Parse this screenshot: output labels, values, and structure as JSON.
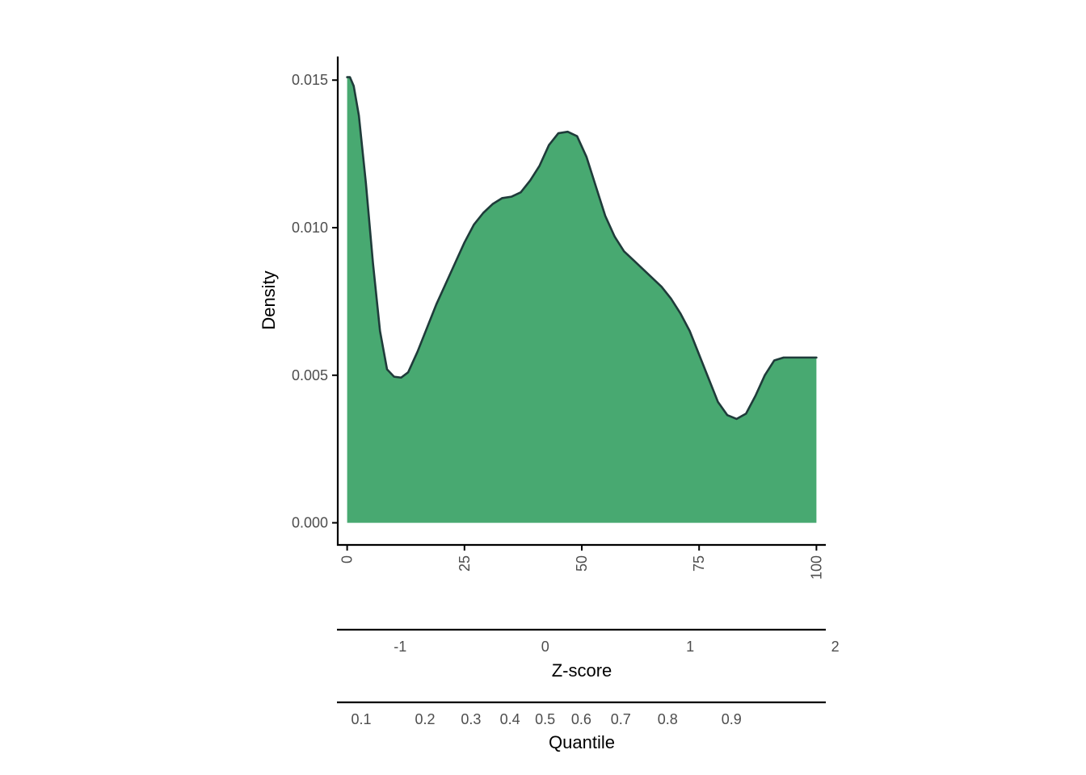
{
  "chart_data": {
    "type": "area",
    "title": "",
    "xlabel": "",
    "ylabel": "Density",
    "xlim": [
      -2,
      102
    ],
    "ylim": [
      -0.00075,
      0.0158
    ],
    "x_ticks": [
      0,
      25,
      50,
      75,
      100
    ],
    "y_ticks": [
      "0.000",
      "0.005",
      "0.010",
      "0.015"
    ],
    "y_tick_values": [
      0,
      0.005,
      0.01,
      0.015
    ],
    "fill_color": "#48a971",
    "line_color": "#1f3b3a",
    "grid": false,
    "series": [
      {
        "x": [
          0,
          0.6,
          1.4,
          2.5,
          4,
          5.5,
          7,
          8.5,
          10,
          11.5,
          13,
          15,
          17,
          19,
          21,
          23,
          25,
          27,
          29,
          31,
          33,
          35,
          37,
          39,
          41,
          43,
          45,
          47,
          49,
          51,
          53,
          55,
          57,
          59,
          61,
          63,
          65,
          67,
          69,
          71,
          73,
          75,
          77,
          79,
          81,
          83,
          85,
          87,
          89,
          91,
          93,
          95,
          97,
          100
        ],
        "y": [
          0.0151,
          0.0151,
          0.0148,
          0.0138,
          0.0115,
          0.0088,
          0.0065,
          0.0052,
          0.00495,
          0.00492,
          0.0051,
          0.0058,
          0.0066,
          0.0074,
          0.0081,
          0.0088,
          0.0095,
          0.0101,
          0.0105,
          0.0108,
          0.011,
          0.01105,
          0.0112,
          0.0116,
          0.0121,
          0.0128,
          0.0132,
          0.01325,
          0.0131,
          0.0124,
          0.0114,
          0.0104,
          0.0097,
          0.0092,
          0.0089,
          0.0086,
          0.0083,
          0.008,
          0.0076,
          0.0071,
          0.0065,
          0.0057,
          0.0049,
          0.0041,
          0.00365,
          0.00352,
          0.0037,
          0.0043,
          0.005,
          0.0055,
          0.0056,
          0.0056,
          0.0056,
          0.0056
        ]
      }
    ],
    "secondary_axes": [
      {
        "title": "Z-score",
        "ticks": [
          "-1",
          "0",
          "1",
          "2"
        ],
        "tick_positions": [
          -1,
          0,
          1,
          2
        ],
        "x_at_zero": 42.2,
        "x_per_unit": 30.9
      },
      {
        "title": "Quantile",
        "ticks": [
          "0.1",
          "0.2",
          "0.3",
          "0.4",
          "0.5",
          "0.6",
          "0.7",
          "0.8",
          "0.9"
        ],
        "tick_positions": [
          0.1,
          0.2,
          0.3,
          0.4,
          0.5,
          0.6,
          0.7,
          0.8,
          0.9
        ],
        "x_values": [
          3,
          16.6,
          26.4,
          34.7,
          42.2,
          49.9,
          58.3,
          68.3,
          81.9
        ]
      }
    ]
  }
}
